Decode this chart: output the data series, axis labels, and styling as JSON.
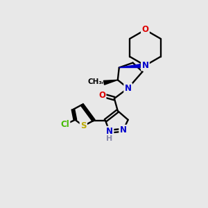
{
  "bg_color": "#e8e8e8",
  "atom_colors": {
    "C": "#000000",
    "N": "#0000cc",
    "O": "#dd0000",
    "S": "#bbaa00",
    "Cl": "#44bb00",
    "H": "#8888aa"
  }
}
